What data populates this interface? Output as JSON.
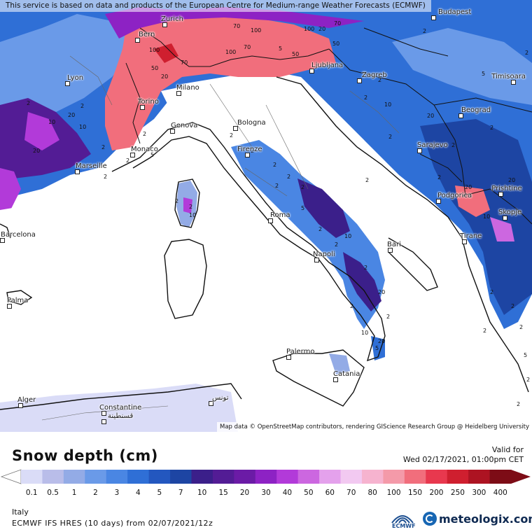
{
  "map": {
    "credit_top": "This service is based on data and products of the European Centre for Medium-range Weather Forecasts (ECMWF)",
    "credit_bottom": "Map data © OpenStreetMap contributors, rendering GIScience Research Group @ Heidelberg University",
    "cities": [
      "Budapest",
      "Zurich",
      "Bern",
      "Ljubljana",
      "Zagreb",
      "Timisoara",
      "Lyon",
      "Milano",
      "Torino",
      "Genova",
      "Bologna",
      "Beograd",
      "Monaco",
      "Marseille",
      "Firenze",
      "Sarajevo",
      "Podgorica",
      "Prishtine",
      "Skopje",
      "Roma",
      "Barcelona",
      "Bari",
      "Tirane",
      "Napoli",
      "Palma",
      "Palermo",
      "Catania",
      "Alger",
      "Constantine",
      "قسنطينة",
      "تونس"
    ],
    "contour_labels": [
      "70",
      "100",
      "70",
      "50",
      "70",
      "100",
      "70",
      "50",
      "20",
      "2",
      "20",
      "10",
      "10",
      "2",
      "5",
      "20",
      "100",
      "5",
      "2",
      "2",
      "100",
      "50",
      "20",
      "2",
      "2",
      "2",
      "5",
      "2",
      "10",
      "20",
      "2",
      "2",
      "2",
      "20",
      "10",
      "20",
      "2",
      "2",
      "5",
      "2",
      "2",
      "10",
      "2",
      "20",
      "2",
      "2",
      "20",
      "5",
      "10",
      "2",
      "2",
      "2",
      "5",
      "2",
      "2",
      "2",
      "2",
      "2",
      "2",
      "2",
      "2",
      "2",
      "2",
      "10",
      "2",
      "2",
      "2"
    ]
  },
  "panel": {
    "title": "Snow depth (cm)",
    "valid_label": "Valid for",
    "valid_time": "Wed 02/17/2021, 01:00pm CET",
    "region": "Italy",
    "model": "ECMWF IFS HRES (10 days) from 02/07/2021/12z",
    "ecmwf_label": "ECMWF",
    "brand": "meteologix.com"
  },
  "legend": {
    "ticks": [
      "0.1",
      "0.5",
      "1",
      "2",
      "3",
      "4",
      "5",
      "7",
      "10",
      "15",
      "20",
      "30",
      "40",
      "50",
      "60",
      "70",
      "80",
      "100",
      "150",
      "200",
      "250",
      "300",
      "400"
    ],
    "colors": [
      "#dadcf7",
      "#b9bde9",
      "#93abe6",
      "#6a9ae8",
      "#4a86e3",
      "#2f6fd6",
      "#2357bf",
      "#1d45a3",
      "#3b1f8a",
      "#531c95",
      "#6b1ba6",
      "#8d22c4",
      "#b23ad9",
      "#cc67e0",
      "#e4a1ec",
      "#f2c9f1",
      "#f6b3cf",
      "#f49aa9",
      "#f16e7c",
      "#e8384e",
      "#cf1f2f",
      "#ad1322",
      "#7d0c16"
    ]
  },
  "colors": {
    "land": "#ffffff",
    "sea": "#ffffff",
    "accent": "#1766b3"
  }
}
